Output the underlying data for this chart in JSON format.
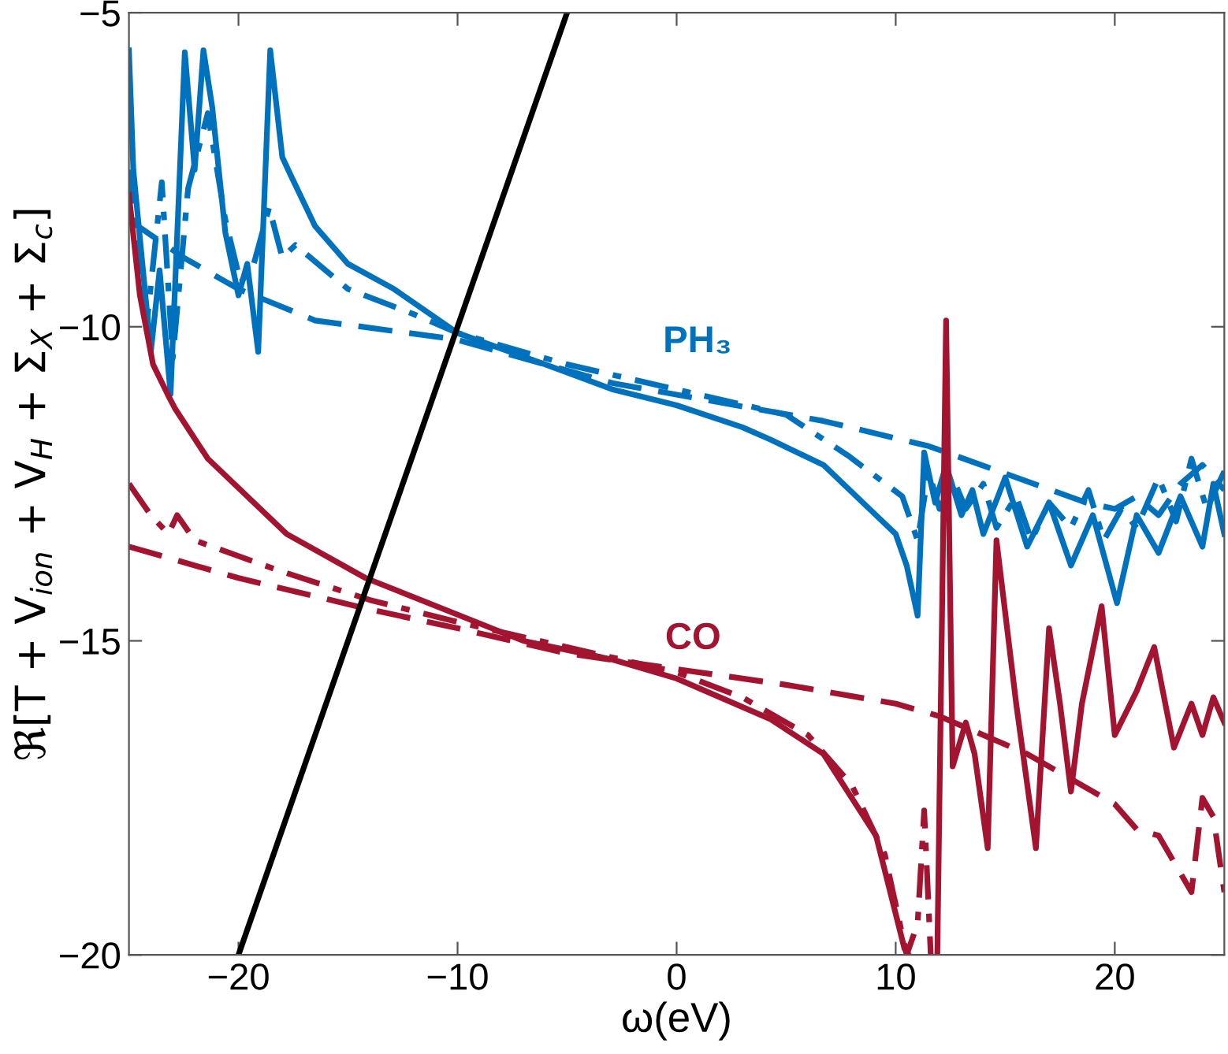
{
  "chart_data": {
    "type": "line",
    "xlabel": "ω(eV)",
    "ylabel": "ℜ[T + V$_{ion}$ + V$_{H}$ + Σ$_{X}$ + Σ$_{c}$]",
    "xlim": [
      -25,
      25
    ],
    "ylim": [
      -20,
      -5
    ],
    "xticks": [
      -20,
      -10,
      0,
      10,
      20
    ],
    "yticks": [
      -20,
      -15,
      -10,
      -5
    ],
    "grid": false,
    "marker": "none",
    "annotations": [
      "PH₃",
      "CO"
    ],
    "series": [
      {
        "color": "#0072bd",
        "line_style": "solid",
        "x": [
          -25,
          -24.8,
          -24.0,
          -23.6,
          -23.1,
          -22.45,
          -22.0,
          -21.6,
          -21.2,
          -20.6,
          -20.0,
          -19.6,
          -19.1,
          -18.55,
          -18.0,
          -17.6,
          -16.5,
          -15,
          -12.9,
          -10,
          -6,
          -2.9,
          0,
          3,
          4.3,
          6.7,
          9.1,
          10.0,
          10.5,
          11.0,
          11.3,
          11.8,
          12.3,
          13,
          13.5,
          14,
          15,
          16,
          17,
          18,
          19,
          20.1,
          21,
          22,
          23,
          24,
          24.5,
          25
        ],
        "values": [
          -5.6,
          -7.5,
          -10.4,
          -9.1,
          -11.07,
          -5.63,
          -7.5,
          -5.6,
          -6.5,
          -8.5,
          -9.5,
          -9.0,
          -10.4,
          -5.6,
          -7.3,
          -7.6,
          -8.4,
          -9.0,
          -9.4,
          -10.1,
          -10.6,
          -11.0,
          -11.25,
          -11.6,
          -11.8,
          -12.2,
          -13.0,
          -13.3,
          -13.8,
          -14.6,
          -12.0,
          -12.8,
          -12.2,
          -13.0,
          -12.6,
          -13.3,
          -12.4,
          -13.5,
          -12.8,
          -13.8,
          -13.0,
          -14.4,
          -13.0,
          -13.6,
          -12.7,
          -13.5,
          -12.5,
          -13.3
        ]
      },
      {
        "color": "#0072bd",
        "line_style": "dashdot",
        "x": [
          -25,
          -24.2,
          -23.5,
          -23.0,
          -22.3,
          -21.4,
          -20.6,
          -19.9,
          -19.3,
          -18.6,
          -18.0,
          -17.4,
          -15,
          -12,
          -10,
          -5,
          0,
          5,
          7.9,
          10.3,
          11,
          11.5,
          12,
          12.6,
          13.2,
          14,
          14.6,
          15.5,
          16.2,
          17,
          18,
          18.8,
          19.5,
          20.3,
          21,
          22,
          22.8,
          23.5,
          24.2,
          25
        ],
        "values": [
          -7.5,
          -10.0,
          -7.7,
          -10.5,
          -7.8,
          -6.6,
          -8.3,
          -9.3,
          -9.0,
          -8.1,
          -8.9,
          -8.7,
          -9.4,
          -9.8,
          -10.1,
          -10.6,
          -11.0,
          -11.4,
          -12.07,
          -12.7,
          -13.4,
          -12.3,
          -12.9,
          -12.4,
          -12.9,
          -12.5,
          -13.2,
          -12.7,
          -13.4,
          -12.8,
          -13.2,
          -12.6,
          -13.4,
          -12.9,
          -13.2,
          -12.4,
          -13.1,
          -12.1,
          -12.9,
          -12.3
        ]
      },
      {
        "color": "#0072bd",
        "line_style": "dashed",
        "x": [
          -25,
          -22.5,
          -20,
          -16.5,
          -10.1,
          -2.9,
          6.7,
          11.5,
          16.3,
          18.7,
          20,
          21,
          22,
          23,
          24,
          25
        ],
        "values": [
          -8.3,
          -8.9,
          -9.4,
          -9.9,
          -10.2,
          -10.9,
          -11.5,
          -11.9,
          -12.5,
          -12.8,
          -12.9,
          -12.7,
          -13.0,
          -12.5,
          -12.2,
          -12.6
        ]
      },
      {
        "color": "#a2142f",
        "line_style": "solid",
        "x": [
          -25,
          -24.5,
          -23.9,
          -23.2,
          -22.9,
          -21.4,
          -17.8,
          -14.2,
          -7.0,
          -2.9,
          0,
          4.3,
          6.7,
          9.1,
          10.4,
          10.6,
          10.8,
          11.9,
          12.3,
          12.6,
          13.2,
          13.6,
          14.2,
          14.6,
          15.5,
          16.4,
          17.0,
          17.5,
          18.0,
          18.5,
          19.4,
          20,
          21,
          21.8,
          22.7,
          23.5,
          24,
          24.5,
          25
        ],
        "values": [
          -7.9,
          -9.5,
          -10.6,
          -11.1,
          -11.3,
          -12.1,
          -13.3,
          -14.0,
          -15.0,
          -15.3,
          -15.6,
          -16.25,
          -16.8,
          -18.1,
          -19.9,
          -20,
          null,
          -20,
          -9.9,
          -17.0,
          -16.3,
          -16.8,
          -18.3,
          -13.4,
          -16.0,
          -18.3,
          -14.8,
          -16.0,
          -17.4,
          -16.0,
          -14.45,
          -16.5,
          -15.8,
          -15.1,
          -16.7,
          -16.0,
          -16.5,
          -15.9,
          -16.3
        ]
      },
      {
        "color": "#a2142f",
        "line_style": "dashdot",
        "x": [
          -25,
          -24,
          -23.2,
          -22.8,
          -22,
          -18,
          -14,
          -10,
          -5,
          0,
          3,
          6,
          8,
          9.5,
          10.5,
          11.0,
          11.3,
          11.6
        ],
        "values": [
          -12.5,
          -13.0,
          -13.3,
          -13.0,
          -13.4,
          -13.9,
          -14.35,
          -14.7,
          -15.1,
          -15.5,
          -15.9,
          -16.5,
          -17.3,
          -18.4,
          -20,
          -19.5,
          -17.7,
          -20
        ]
      },
      {
        "color": "#a2142f",
        "line_style": "dashed",
        "x": [
          -25,
          -20,
          -14,
          -10,
          -5,
          0,
          5,
          10,
          12,
          14,
          16,
          18,
          20,
          21,
          22,
          23,
          23.5,
          24,
          24.5,
          25
        ],
        "values": [
          -13.5,
          -14.0,
          -14.5,
          -14.8,
          -15.2,
          -15.45,
          -15.7,
          -16.0,
          -16.2,
          -16.5,
          -16.8,
          -17.2,
          -17.6,
          -18.0,
          -18.1,
          -18.7,
          -19.0,
          -17.5,
          -17.8,
          -19.0
        ]
      },
      {
        "color": "#000000",
        "line_style": "solid",
        "x": [
          -20,
          -5
        ],
        "values": [
          -20,
          -5
        ]
      }
    ]
  }
}
